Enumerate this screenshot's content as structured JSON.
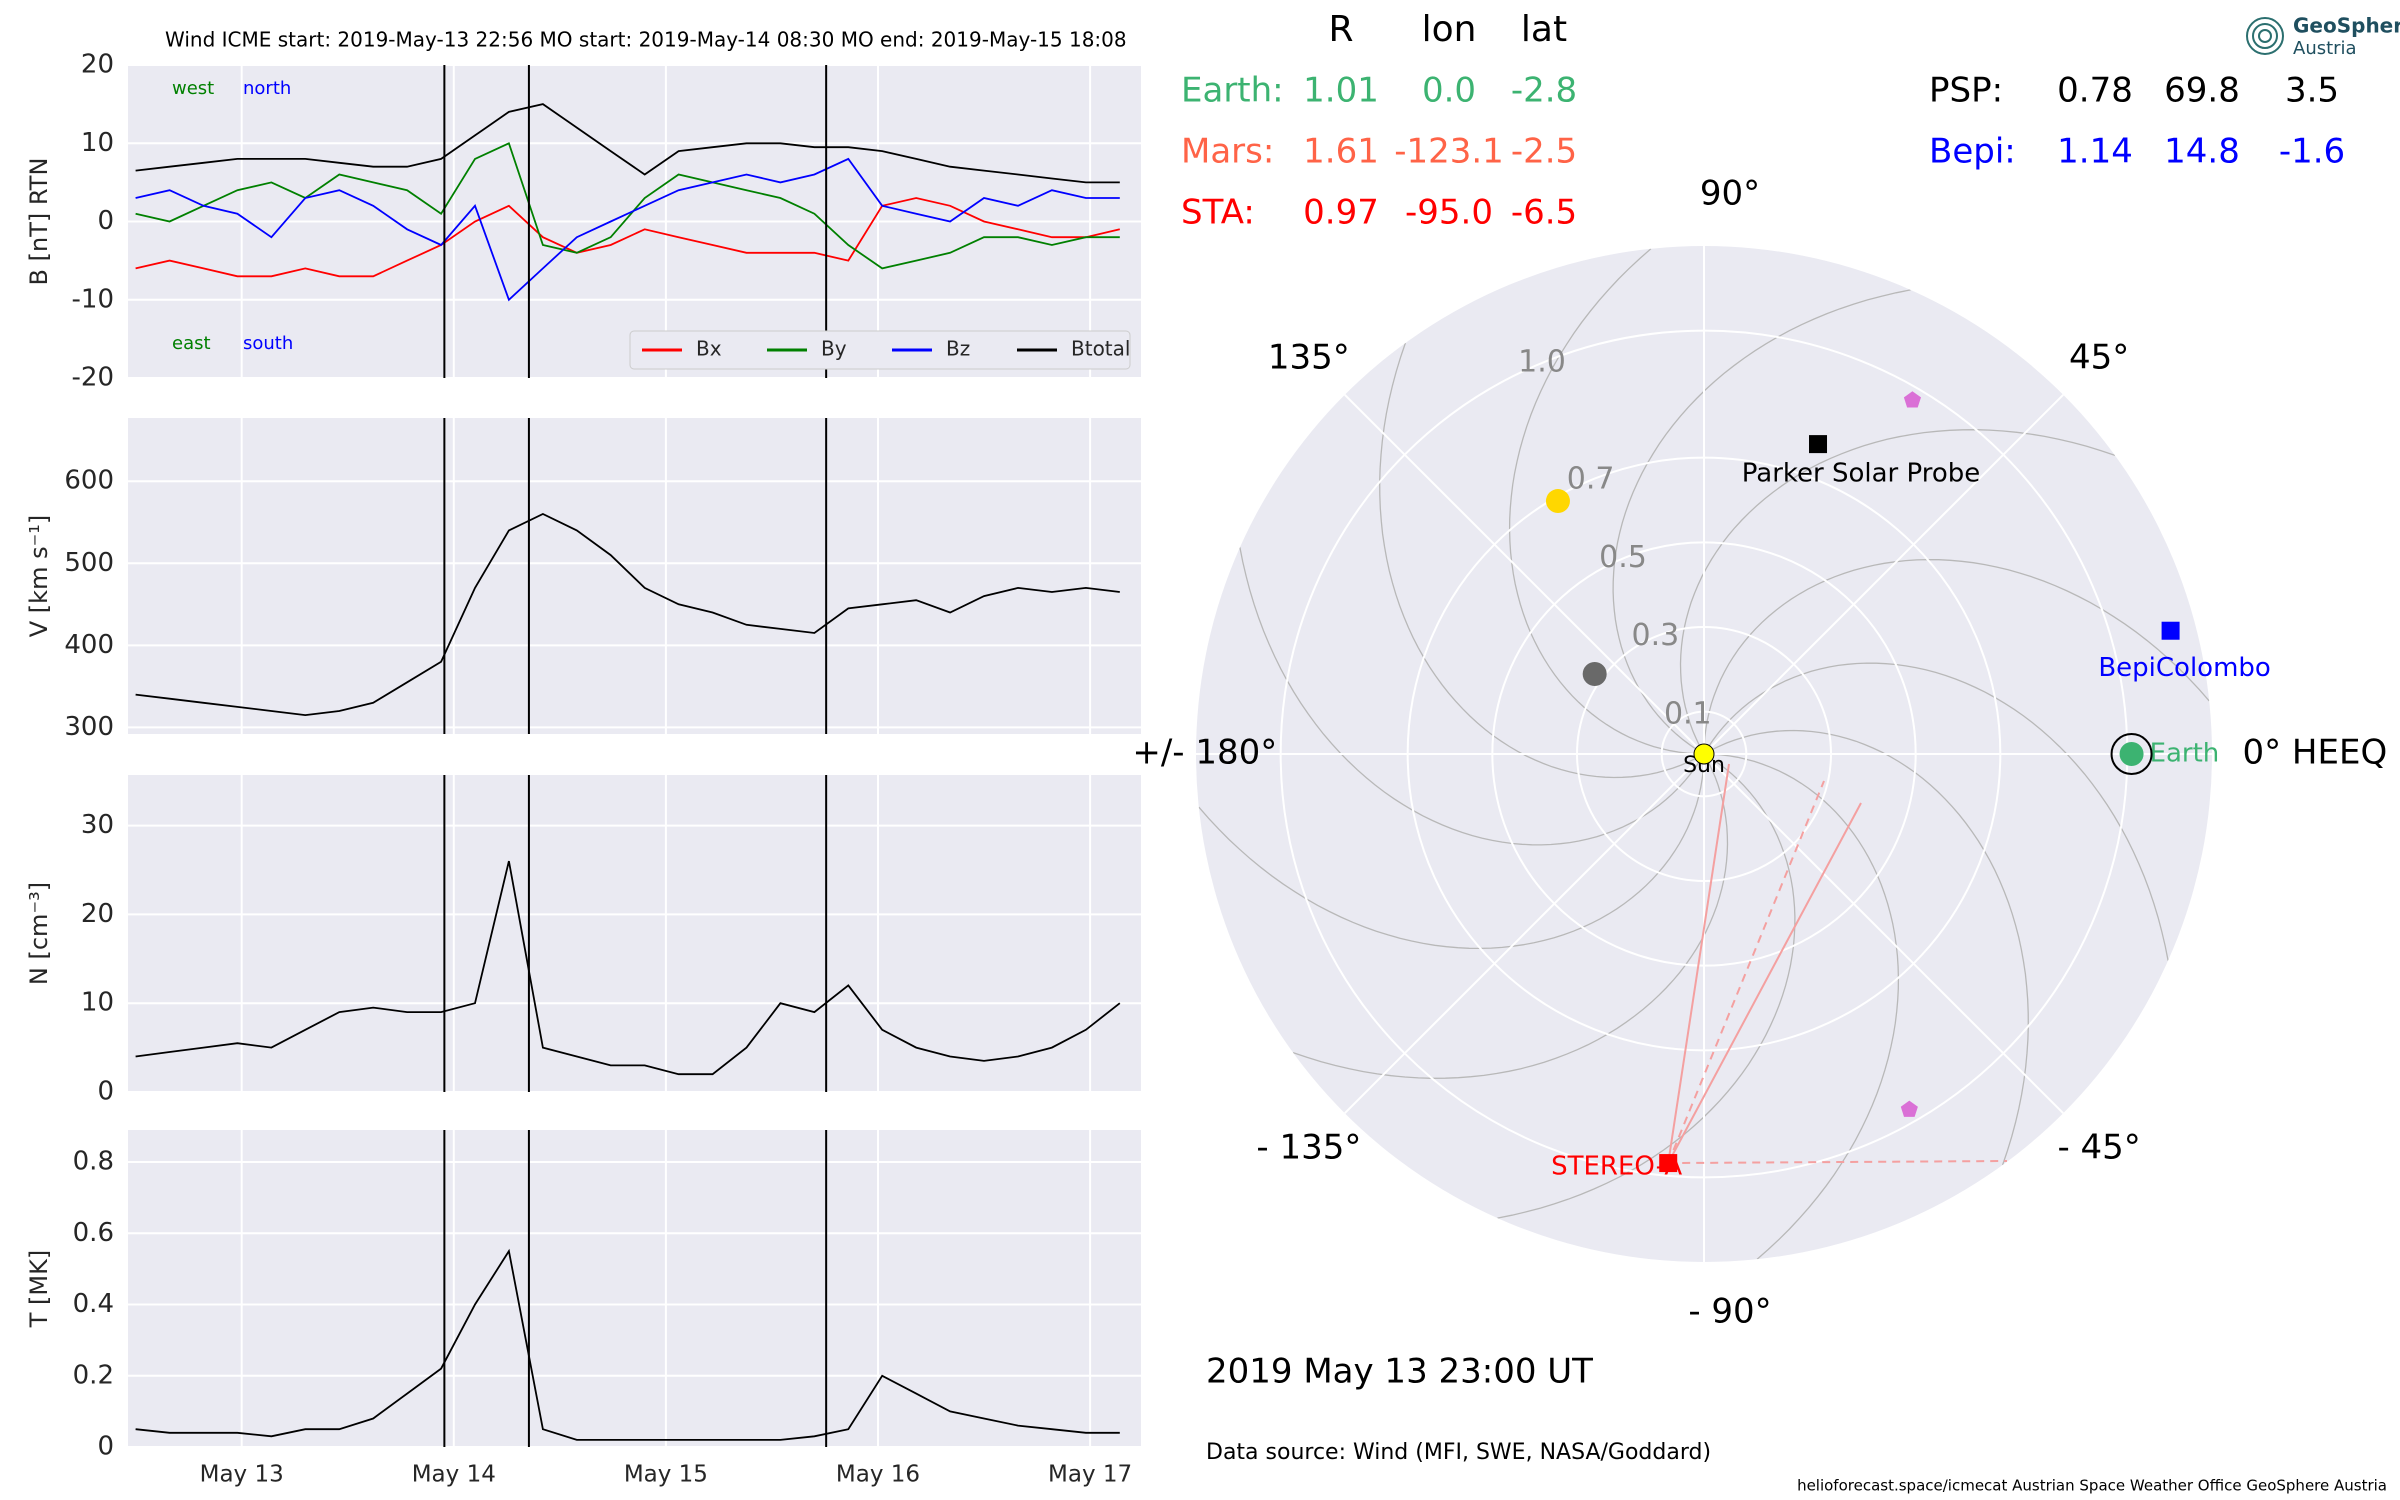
{
  "chart_data": [
    {
      "type": "line",
      "title": "Wind    ICME start: 2019-May-13 22:56   MO start: 2019-May-14 08:30   MO end: 2019-May-15 18:08",
      "ylabel": "B [nT] RTN",
      "ylim": [
        -20,
        20
      ],
      "yticks": [
        -20,
        -10,
        0,
        10,
        20
      ],
      "grid": true,
      "legend": "lower right",
      "annotations": [
        {
          "text": "west",
          "color": "#008000"
        },
        {
          "text": "north",
          "color": "#0000ff"
        },
        {
          "text": "east",
          "color": "#008000"
        },
        {
          "text": "south",
          "color": "#0000ff"
        }
      ],
      "series": [
        {
          "name": "Bx",
          "color": "#ff0000",
          "values": [
            -6,
            -5,
            -6,
            -7,
            -7,
            -6,
            -7,
            -7,
            -5,
            -3,
            0,
            2,
            -2,
            -4,
            -3,
            -1,
            -2,
            -3,
            -4,
            -4,
            -4,
            -5,
            2,
            3,
            2,
            0,
            -1,
            -2,
            -2,
            -1
          ]
        },
        {
          "name": "By",
          "color": "#008000",
          "values": [
            1,
            0,
            2,
            4,
            5,
            3,
            6,
            5,
            4,
            1,
            8,
            10,
            -3,
            -4,
            -2,
            3,
            6,
            5,
            4,
            3,
            1,
            -3,
            -6,
            -5,
            -4,
            -2,
            -2,
            -3,
            -2,
            -2
          ]
        },
        {
          "name": "Bz",
          "color": "#0000ff",
          "values": [
            3,
            4,
            2,
            1,
            -2,
            3,
            4,
            2,
            -1,
            -3,
            2,
            -10,
            -6,
            -2,
            0,
            2,
            4,
            5,
            6,
            5,
            6,
            8,
            2,
            1,
            0,
            3,
            2,
            4,
            3,
            3
          ]
        },
        {
          "name": "Btotal",
          "color": "#000000",
          "values": [
            6.5,
            7,
            7.5,
            8,
            8,
            8,
            7.5,
            7,
            7,
            8,
            11,
            14,
            15,
            12,
            9,
            6,
            9,
            9.5,
            10,
            10,
            9.5,
            9.5,
            9,
            8,
            7,
            6.5,
            6,
            5.5,
            5,
            5
          ]
        }
      ]
    },
    {
      "type": "line",
      "ylabel": "V [km s⁻¹]",
      "ylim": [
        292,
        677
      ],
      "yticks": [
        300,
        400,
        500,
        600
      ],
      "grid": true,
      "color": "#000000",
      "values": [
        340,
        335,
        330,
        325,
        320,
        315,
        320,
        330,
        355,
        380,
        470,
        540,
        560,
        540,
        510,
        470,
        450,
        440,
        425,
        420,
        415,
        445,
        450,
        455,
        440,
        460,
        470,
        465,
        470,
        465
      ]
    },
    {
      "type": "line",
      "ylabel": "N [cm⁻³]",
      "ylim": [
        0,
        35.7
      ],
      "yticks": [
        0,
        10,
        20,
        30
      ],
      "grid": true,
      "color": "#000000",
      "values": [
        4,
        4.5,
        5,
        5.5,
        5,
        7,
        9,
        9.5,
        9,
        9,
        10,
        26,
        5,
        4,
        3,
        3,
        2,
        2,
        5,
        10,
        9,
        12,
        7,
        5,
        4,
        3.5,
        4,
        5,
        7,
        10
      ]
    },
    {
      "type": "line",
      "ylabel": "T [MK]",
      "ylim": [
        0,
        0.89
      ],
      "yticks": [
        0.0,
        0.2,
        0.4,
        0.6,
        0.8
      ],
      "grid": true,
      "color": "#000000",
      "xtick_labels": true,
      "values": [
        0.05,
        0.04,
        0.04,
        0.04,
        0.03,
        0.05,
        0.05,
        0.08,
        0.15,
        0.22,
        0.4,
        0.55,
        0.05,
        0.02,
        0.02,
        0.02,
        0.02,
        0.02,
        0.02,
        0.02,
        0.03,
        0.05,
        0.2,
        0.15,
        0.1,
        0.08,
        0.06,
        0.05,
        0.04,
        0.04
      ]
    },
    {
      "type": "polar",
      "rlim": [
        0,
        1.2
      ],
      "rticks": [
        0.1,
        0.3,
        0.5,
        0.7,
        {
          "value": 1,
          "label": "1.0"
        }
      ],
      "thetaticks": [
        {
          "value": 0,
          "label": "0° HEEQ"
        },
        {
          "value": 45,
          "label": "45°"
        },
        {
          "value": 90,
          "label": "90°"
        },
        {
          "value": 135,
          "label": "135°"
        },
        {
          "value": 180,
          "label": "+/- 180°"
        },
        {
          "value": -135,
          "label": "- 135°"
        },
        {
          "value": -90,
          "label": "- 90°"
        },
        {
          "value": -45,
          "label": "- 45°"
        }
      ],
      "points": [
        {
          "name": "Sun",
          "r": 0,
          "lon": 0,
          "color": "#ffff00",
          "marker": "circle"
        },
        {
          "name": null,
          "r": 0.32,
          "lon": 143.8,
          "color": "#696969",
          "marker": "circle"
        },
        {
          "name": null,
          "r": 0.69,
          "lon": 120,
          "color": "#ffd700",
          "marker": "circle"
        },
        {
          "name": "Earth",
          "r": 1.01,
          "lon": 0,
          "color": "#3cb371",
          "marker": "circle",
          "outline": "#000000"
        },
        {
          "name": "BepiColombo",
          "r": 1.14,
          "lon": 14.8,
          "color": "#0000ff",
          "marker": "square"
        },
        {
          "name": "Parker Solar Probe",
          "r": 0.78,
          "lon": 69.8,
          "color": "#000000",
          "marker": "square"
        },
        {
          "name": "STEREO-A",
          "r": 0.97,
          "lon": -95,
          "color": "#ff0000",
          "marker": "square"
        },
        {
          "name": null,
          "r": 0.97,
          "lon": 59.5,
          "color": "#da70d6",
          "marker": "pentagon"
        },
        {
          "name": null,
          "r": 0.97,
          "lon": -60,
          "color": "#da70d6",
          "marker": "pentagon"
        }
      ]
    }
  ],
  "time_axis": {
    "x": [
      12.5,
      12.66,
      12.82,
      12.98,
      13.14,
      13.3,
      13.46,
      13.62,
      13.78,
      13.94,
      14.1,
      14.26,
      14.42,
      14.58,
      14.74,
      14.9,
      15.06,
      15.22,
      15.38,
      15.54,
      15.7,
      15.86,
      16.02,
      16.18,
      16.34,
      16.5,
      16.66,
      16.82,
      16.98,
      17.14
    ],
    "xlim": [
      12.464,
      17.24
    ],
    "xticks": [
      {
        "value": 13,
        "label": "May 13"
      },
      {
        "value": 14,
        "label": "May 14"
      },
      {
        "value": 15,
        "label": "May 15"
      },
      {
        "value": 16,
        "label": "May 16"
      },
      {
        "value": 17,
        "label": "May 17"
      }
    ],
    "event_times": [
      13.9556,
      14.3542,
      15.7556
    ]
  },
  "positions_table": {
    "columns": [
      "R",
      "lon",
      "lat"
    ],
    "rows": [
      {
        "label": "Earth:",
        "color": "#3cb371",
        "cells": [
          "1.01",
          "0.0",
          "-2.8"
        ]
      },
      {
        "label": "Mars:",
        "color": "#ff6347",
        "cells": [
          "1.61",
          "-123.1",
          "-2.5"
        ]
      },
      {
        "label": "STA:",
        "color": "#ff0000",
        "cells": [
          "0.97",
          "-95.0",
          "-6.5"
        ]
      },
      {
        "label": "PSP:",
        "color": "#000000",
        "cells": [
          "0.78",
          "69.8",
          "3.5"
        ]
      },
      {
        "label": "Bepi:",
        "color": "#0000ff",
        "cells": [
          "1.14",
          "14.8",
          "-1.6"
        ]
      }
    ]
  },
  "timestamp": "2019 May 13  23:00 UT",
  "data_source": "Data source: Wind (MFI, SWE, NASA/Goddard)",
  "footer": "helioforecast.space/icmecat   Austrian Space Weather Office   GeoSphere Austria",
  "logo": {
    "line1": "GeoSphere",
    "line2": "Austria"
  }
}
